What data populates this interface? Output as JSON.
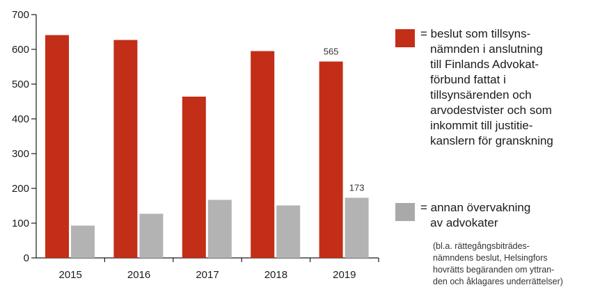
{
  "chart_data": {
    "type": "bar",
    "categories": [
      "2015",
      "2016",
      "2017",
      "2018",
      "2019"
    ],
    "series": [
      {
        "name": "beslut som tillsynsnämnden i anslutning till Finlands Advokatförbund fattat i tillsynsärenden och arvodestvister och som inkommit till justitiekanslern för granskning",
        "values": [
          641,
          627,
          464,
          595,
          565
        ],
        "color": "#c22e17"
      },
      {
        "name": "annan övervakning av advokater",
        "values": [
          93,
          127,
          167,
          151,
          173
        ],
        "color": "#b3b3b3"
      }
    ],
    "data_labels": [
      {
        "series": 0,
        "category": "2019",
        "text": "565"
      },
      {
        "series": 1,
        "category": "2019",
        "text": "173"
      }
    ],
    "y_ticks": [
      "0",
      "100",
      "200",
      "300",
      "400",
      "500",
      "600",
      "700"
    ],
    "ylim": [
      0,
      700
    ],
    "grid": false,
    "legend_position": "right",
    "title": "",
    "xlabel": "",
    "ylabel": ""
  },
  "legend": {
    "items": [
      {
        "text": "= beslut som tillsyns-\n   nämnden i anslutning\n   till Finlands Advokat-\n   förbund fattat i\n   tillsynsärenden och\n   arvodestvister och som\n   inkommit till justitie-\n   kanslern för granskning",
        "color": "#c22e17"
      },
      {
        "text": "= annan övervakning\n   av advokater",
        "color": "#a9a9a9",
        "note": "(bl.a. rättegångsbiträdes-\nnämndens beslut, Helsingfors\nhovrätts begäranden om yttran-\nden och åklagares underrättelser)"
      }
    ]
  }
}
